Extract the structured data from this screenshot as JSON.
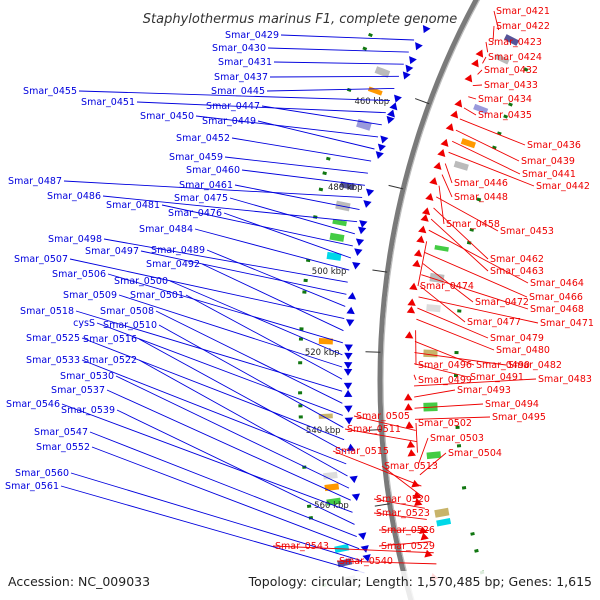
{
  "title": "Staphylothermus marinus F1, complete genome",
  "accession": "Accession: NC_009033",
  "summary": "Topology: circular; Length: 1,570,485 bp; Genes: 1,615",
  "colors": {
    "left": "#0000dd",
    "right": "#ee0000",
    "tick_line": "#666666",
    "backbone": "#7a7a7a"
  },
  "ticks": [
    "460 kbp",
    "480 kbp",
    "500 kbp",
    "520 kbp",
    "540 kbp",
    "560 kbp"
  ],
  "left_labels": [
    "Smar_0429",
    "Smar_0430",
    "Smar_0431",
    "Smar_0437",
    "Smar_0445",
    "Smar_0455",
    "Smar_0451",
    "Smar_0447",
    "Smar_0450",
    "Smar_0449",
    "Smar_0452",
    "Smar_0459",
    "Smar_0460",
    "Smar_0487",
    "Smar_0461",
    "Smar_0486",
    "Smar_0475",
    "Smar_0481",
    "Smar_0476",
    "Smar_0484",
    "Smar_0498",
    "Smar_0497",
    "Smar_0489",
    "Smar_0507",
    "Smar_0492",
    "Smar_0506",
    "Smar_0500",
    "Smar_0509",
    "Smar_0501",
    "Smar_0518",
    "Smar_0508",
    "cysS",
    "Smar_0510",
    "Smar_0525",
    "Smar_0516",
    "Smar_0533",
    "Smar_0522",
    "Smar_0530",
    "Smar_0537",
    "Smar_0546",
    "Smar_0539",
    "Smar_0547",
    "Smar_0552",
    "Smar_0560",
    "Smar_0561"
  ],
  "right_labels": [
    "Smar_0421",
    "Smar_0422",
    "Smar_0423",
    "Smar_0424",
    "Smar_0432",
    "Smar_0433",
    "Smar_0434",
    "Smar_0435",
    "Smar_0436",
    "Smar_0439",
    "Smar_0441",
    "Smar_0442",
    "Smar_0446",
    "Smar_0448",
    "Smar_0458",
    "Smar_0453",
    "Smar_0462",
    "Smar_0463",
    "Smar_0464",
    "Smar_0474",
    "Smar_0466",
    "Smar_0472",
    "Smar_0468",
    "Smar_0477",
    "Smar_0471",
    "Smar_0479",
    "Smar_0480",
    "Smar_0496",
    "Smar_0490",
    "Smar_0482",
    "Smar_0491",
    "Smar_0499",
    "Smar_0483",
    "Smar_0493",
    "Smar_0494",
    "Smar_0495",
    "Smar_0505",
    "Smar_0511",
    "Smar_0502",
    "Smar_0503",
    "Smar_0504",
    "Smar_0515",
    "Smar_0513",
    "Smar_0520",
    "Smar_0523",
    "Smar_0526",
    "Smar_0529",
    "Smar_0543",
    "Smar_0540"
  ]
}
